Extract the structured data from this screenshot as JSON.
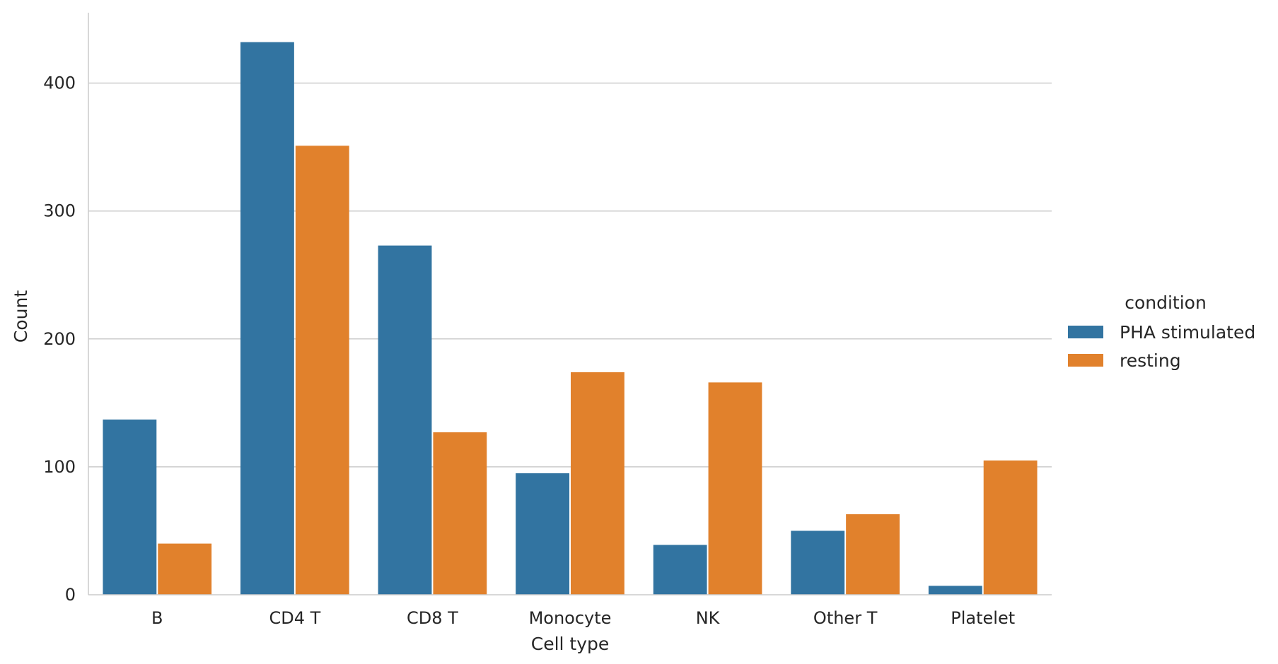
{
  "chart_data": {
    "type": "bar",
    "xlabel": "Cell type",
    "ylabel": "Count",
    "categories": [
      "B",
      "CD4 T",
      "CD8 T",
      "Monocyte",
      "NK",
      "Other T",
      "Platelet"
    ],
    "series": [
      {
        "name": "PHA stimulated",
        "values": [
          137,
          432,
          273,
          95,
          39,
          50,
          7
        ],
        "color": "#3274a1"
      },
      {
        "name": "resting",
        "values": [
          40,
          351,
          127,
          174,
          166,
          63,
          105
        ],
        "color": "#e1812c"
      }
    ],
    "ylim": [
      0,
      455
    ],
    "yticks": [
      0,
      100,
      200,
      300,
      400
    ],
    "grid": "horizontal",
    "legend": {
      "title": "condition",
      "placement": "right"
    }
  }
}
